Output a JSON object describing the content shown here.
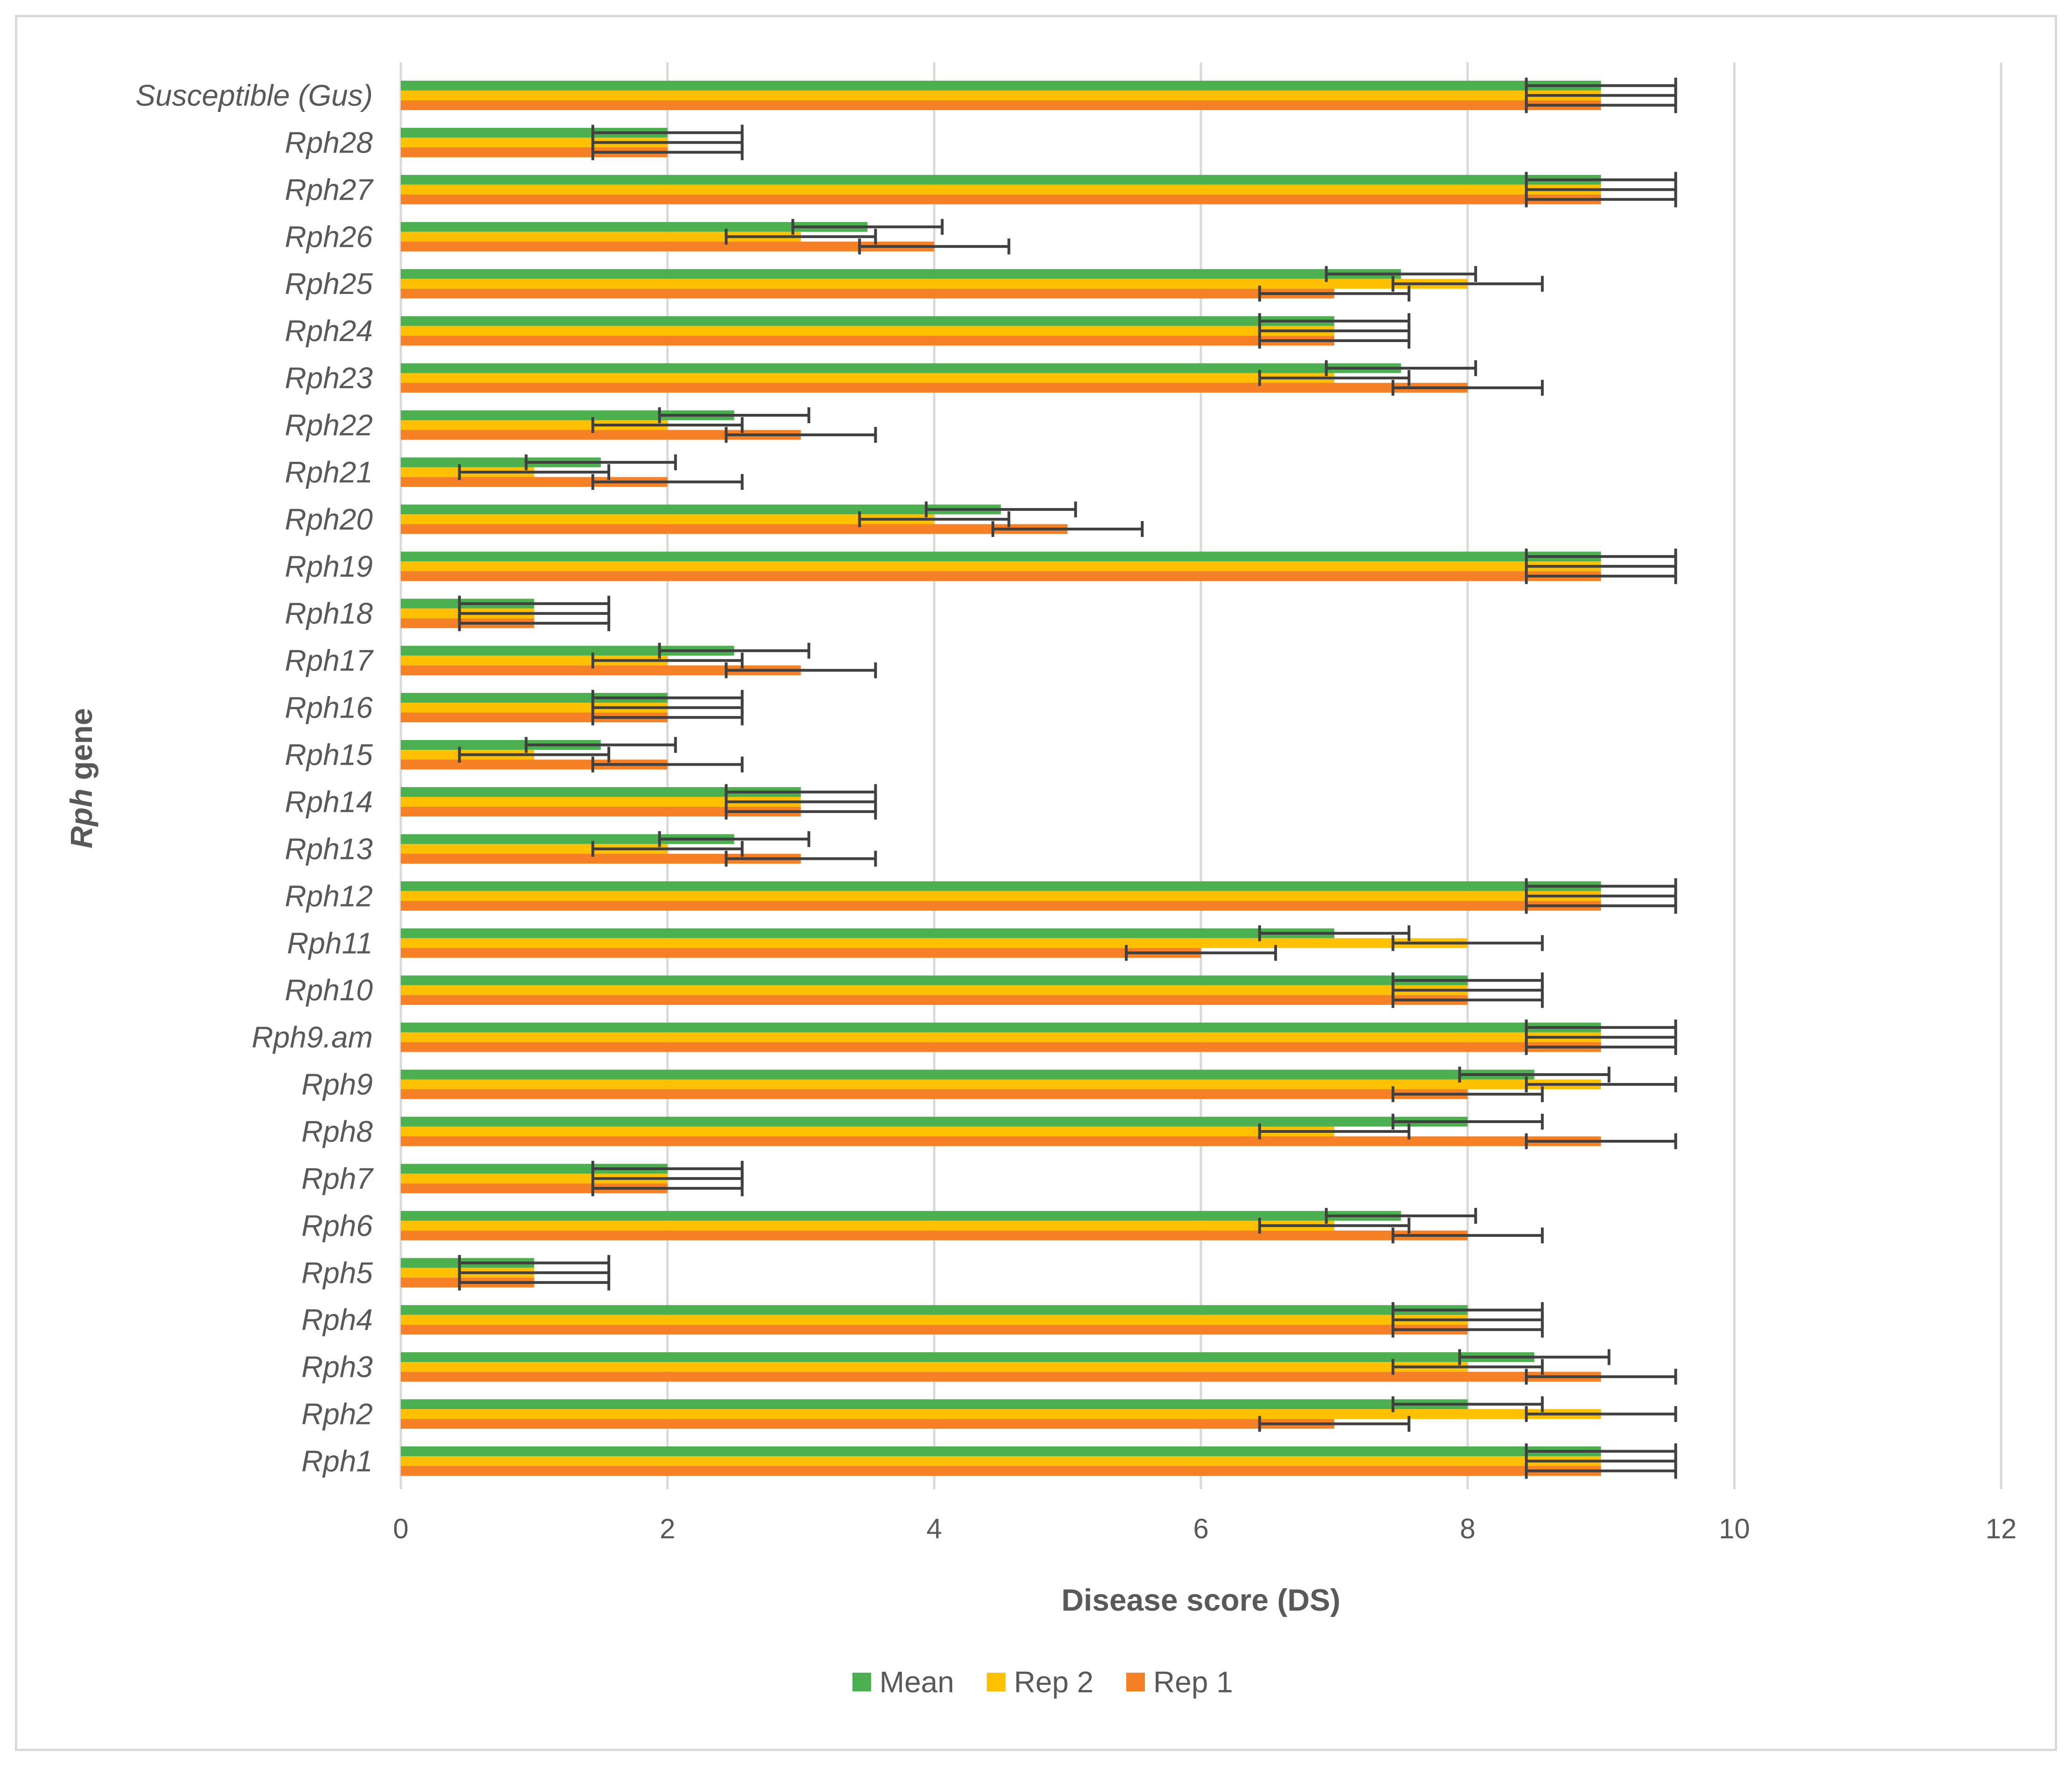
{
  "chart_data": {
    "type": "bar",
    "orientation": "horizontal",
    "title": "",
    "xlabel": "Disease score (DS)",
    "ylabel_italic": "Rph",
    "ylabel_rest": " gene",
    "xlim": [
      0,
      12
    ],
    "xticks": [
      0,
      2,
      4,
      6,
      8,
      10,
      12
    ],
    "grid": "vertical",
    "legend_position": "bottom",
    "categories": [
      "Susceptible (Gus)",
      "Rph28",
      "Rph27",
      "Rph26",
      "Rph25",
      "Rph24",
      "Rph23",
      "Rph22",
      "Rph21",
      "Rph20",
      "Rph19",
      "Rph18",
      "Rph17",
      "Rph16",
      "Rph15",
      "Rph14",
      "Rph13",
      "Rph12",
      "Rph11",
      "Rph10",
      "Rph9.am",
      "Rph9",
      "Rph8",
      "Rph7",
      "Rph6",
      "Rph5",
      "Rph4",
      "Rph3",
      "Rph2",
      "Rph1"
    ],
    "series": [
      {
        "name": "Mean",
        "color": "#4caf50",
        "values": [
          9,
          2,
          9,
          3.5,
          7.5,
          7,
          7.5,
          2.5,
          1.5,
          4.5,
          9,
          1,
          2.5,
          2,
          1.5,
          3,
          2.5,
          9,
          7,
          8,
          9,
          8.5,
          8,
          2,
          7.5,
          1,
          8,
          8.5,
          8,
          9
        ]
      },
      {
        "name": "Rep 2",
        "color": "#ffc000",
        "values": [
          9,
          2,
          9,
          3,
          8,
          7,
          7,
          2,
          1,
          4,
          9,
          1,
          2,
          2,
          1,
          3,
          2,
          9,
          8,
          8,
          9,
          9,
          7,
          2,
          7,
          1,
          8,
          8,
          9,
          9
        ]
      },
      {
        "name": "Rep 1",
        "color": "#f58025",
        "values": [
          9,
          2,
          9,
          4,
          7,
          7,
          8,
          3,
          2,
          5,
          9,
          1,
          3,
          2,
          2,
          3,
          3,
          9,
          6,
          8,
          9,
          8,
          9,
          2,
          8,
          1,
          8,
          9,
          7,
          9
        ]
      }
    ],
    "error_bar": 0.56,
    "errorbar_color": "#404040",
    "gridline_color": "#d9d9d9",
    "text_color": "#595959"
  }
}
